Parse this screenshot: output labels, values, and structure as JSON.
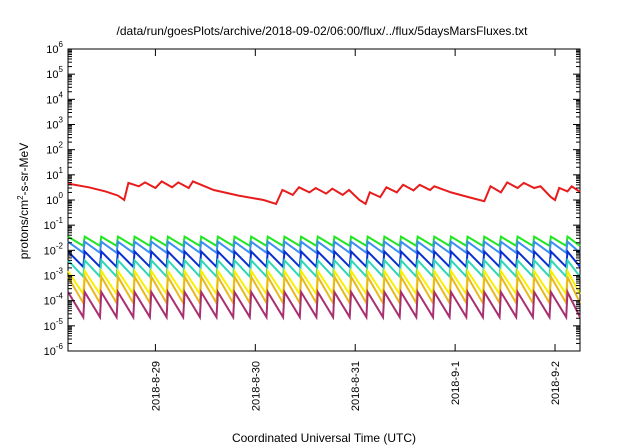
{
  "chart_data": {
    "type": "line",
    "title": "/data/run/goesPlots/archive/2018-09-02/06:00/flux/../flux/5daysMarsFluxes.txt",
    "xlabel": "Coordinated Universal Time (UTC)",
    "ylabel_parts": [
      "protons/cm",
      "2",
      "-s-sr-MeV"
    ],
    "y_scale": "log",
    "ylim": [
      1e-06,
      1000000.0
    ],
    "y_ticks": [
      {
        "base": "10",
        "exp": "-6"
      },
      {
        "base": "10",
        "exp": "-5"
      },
      {
        "base": "10",
        "exp": "-4"
      },
      {
        "base": "10",
        "exp": "-3"
      },
      {
        "base": "10",
        "exp": "-2"
      },
      {
        "base": "10",
        "exp": "-1"
      },
      {
        "base": "10",
        "exp": "0"
      },
      {
        "base": "10",
        "exp": "1"
      },
      {
        "base": "10",
        "exp": "2"
      },
      {
        "base": "10",
        "exp": "3"
      },
      {
        "base": "10",
        "exp": "4"
      },
      {
        "base": "10",
        "exp": "5"
      },
      {
        "base": "10",
        "exp": "6"
      }
    ],
    "x_range": [
      "2018-08-28T03:00",
      "2018-09-02T06:00"
    ],
    "x_ticks": [
      {
        "label": "2018-8-29",
        "t": "2018-08-29T00:00"
      },
      {
        "label": "2018-8-30",
        "t": "2018-08-30T00:00"
      },
      {
        "label": "2018-8-31",
        "t": "2018-08-31T00:00"
      },
      {
        "label": "2018-9-1",
        "t": "2018-09-01T00:00"
      },
      {
        "label": "2018-9-2",
        "t": "2018-09-02T00:00"
      }
    ],
    "grid": false,
    "legend": "none",
    "series": [
      {
        "color": "#e81c1c",
        "points": [
          [
            "2018-08-28T03:00",
            4.5
          ],
          [
            "2018-08-28T08:00",
            3.2
          ],
          [
            "2018-08-28T12:00",
            2.2
          ],
          [
            "2018-08-28T15:00",
            1.5
          ],
          [
            "2018-08-28T16:30",
            1.0
          ],
          [
            "2018-08-28T17:30",
            4.8
          ],
          [
            "2018-08-28T20:00",
            3.5
          ],
          [
            "2018-08-28T21:30",
            5.0
          ],
          [
            "2018-08-29T00:00",
            3.0
          ],
          [
            "2018-08-29T01:30",
            5.5
          ],
          [
            "2018-08-29T04:00",
            3.2
          ],
          [
            "2018-08-29T05:30",
            5.0
          ],
          [
            "2018-08-29T08:00",
            3.0
          ],
          [
            "2018-08-29T09:00",
            5.5
          ],
          [
            "2018-08-29T14:00",
            2.5
          ],
          [
            "2018-08-29T20:00",
            1.5
          ],
          [
            "2018-08-30T02:00",
            1.0
          ],
          [
            "2018-08-30T05:00",
            0.7
          ],
          [
            "2018-08-30T06:30",
            2.5
          ],
          [
            "2018-08-30T09:00",
            1.6
          ],
          [
            "2018-08-30T10:30",
            3.2
          ],
          [
            "2018-08-30T13:00",
            2.0
          ],
          [
            "2018-08-30T14:30",
            3.0
          ],
          [
            "2018-08-30T17:00",
            1.8
          ],
          [
            "2018-08-30T18:30",
            2.8
          ],
          [
            "2018-08-30T21:00",
            1.6
          ],
          [
            "2018-08-30T22:30",
            2.5
          ],
          [
            "2018-08-31T01:00",
            1.0
          ],
          [
            "2018-08-31T02:30",
            0.7
          ],
          [
            "2018-08-31T03:30",
            2.0
          ],
          [
            "2018-08-31T06:00",
            1.3
          ],
          [
            "2018-08-31T07:30",
            3.2
          ],
          [
            "2018-08-31T10:00",
            2.0
          ],
          [
            "2018-08-31T11:30",
            4.0
          ],
          [
            "2018-08-31T14:00",
            2.4
          ],
          [
            "2018-08-31T15:30",
            4.0
          ],
          [
            "2018-08-31T18:00",
            2.5
          ],
          [
            "2018-08-31T19:00",
            3.5
          ],
          [
            "2018-08-31T23:00",
            2.0
          ],
          [
            "2018-09-01T04:00",
            1.2
          ],
          [
            "2018-09-01T07:00",
            0.9
          ],
          [
            "2018-09-01T08:30",
            3.5
          ],
          [
            "2018-09-01T11:00",
            2.0
          ],
          [
            "2018-09-01T12:30",
            5.0
          ],
          [
            "2018-09-01T15:00",
            3.0
          ],
          [
            "2018-09-01T16:30",
            4.8
          ],
          [
            "2018-09-01T19:00",
            3.0
          ],
          [
            "2018-09-01T20:30",
            3.5
          ],
          [
            "2018-09-01T23:00",
            1.3
          ],
          [
            "2018-09-02T00:00",
            1.0
          ],
          [
            "2018-09-02T01:00",
            3.0
          ],
          [
            "2018-09-02T03:00",
            2.2
          ],
          [
            "2018-09-02T04:00",
            3.5
          ],
          [
            "2018-09-02T06:00",
            2.1
          ]
        ]
      },
      {
        "color": "#22e622",
        "sawtooth": {
          "period_hours": 4,
          "peak": 0.035,
          "trough": 0.015
        }
      },
      {
        "color": "#3c8ef0",
        "sawtooth": {
          "period_hours": 4,
          "peak": 0.022,
          "trough": 0.008
        }
      },
      {
        "color": "#0a2fd0",
        "sawtooth": {
          "period_hours": 4,
          "peak": 0.009,
          "trough": 0.0022
        }
      },
      {
        "color": "#2fd6b8",
        "sawtooth": {
          "period_hours": 4,
          "peak": 0.004,
          "trough": 0.0009
        }
      },
      {
        "color": "#f8f000",
        "sawtooth": {
          "period_hours": 4,
          "peak": 0.0015,
          "trough": 0.00018
        }
      },
      {
        "color": "#e8b820",
        "sawtooth": {
          "period_hours": 4,
          "peak": 0.0009,
          "trough": 8e-05
        }
      },
      {
        "color": "#a83070",
        "sawtooth": {
          "period_hours": 4,
          "peak": 0.00022,
          "trough": 2.2e-05
        }
      }
    ]
  }
}
